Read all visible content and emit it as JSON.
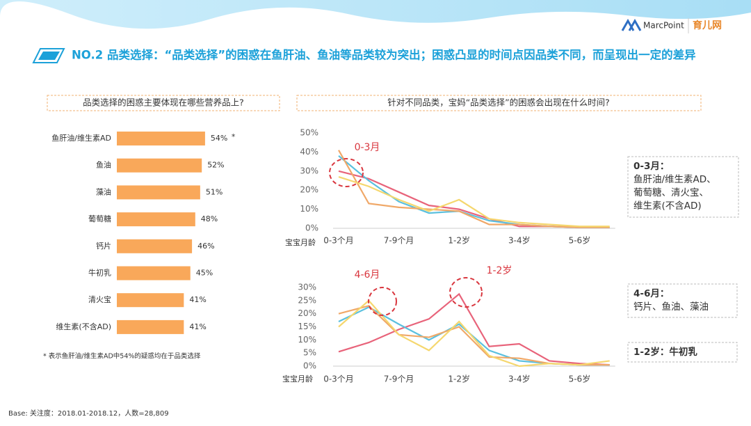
{
  "header": {
    "title": "NO.2 品类选择：“品类选择”的困惑在鱼肝油、鱼油等品类较为突出；困惑凸显的时间点因品类不同，而呈现出一定的差异",
    "logos": [
      "MarcPoint",
      "育儿网"
    ]
  },
  "footer": "Base: 关注度：2018.01-2018.12，人数=28,809",
  "chart_data": [
    {
      "type": "bar",
      "title": "品类选择的困惑主要体现在哪些营养品上?",
      "categories": [
        "鱼肝油/维生素AD",
        "鱼油",
        "藻油",
        "葡萄糖",
        "钙片",
        "牛初乳",
        "清火宝",
        "维生素(不含AD)"
      ],
      "values": [
        54,
        52,
        51,
        48,
        46,
        45,
        41,
        41
      ],
      "value_labels": [
        "54%",
        "52%",
        "51%",
        "48%",
        "46%",
        "45%",
        "41%",
        "41%"
      ],
      "color": "#f9a85a",
      "annotation": "*",
      "note": "* 表示鱼肝油/维生素AD中54%的疑惑均在于品类选择"
    },
    {
      "type": "line",
      "title": "针对不同品类，宝妈“品类选择”的困惑会出现在什么时间?",
      "x_label": "宝宝月龄",
      "categories": [
        "0-3个月",
        null,
        "7-9个月",
        null,
        "1-2岁",
        null,
        "3-4岁",
        null,
        "5-6岁",
        null
      ],
      "ylim": [
        0,
        50
      ],
      "yticks": [
        {
          "value": 0,
          "label": "0%"
        },
        {
          "value": 10,
          "label": "10%"
        },
        {
          "value": 20,
          "label": "20%"
        },
        {
          "value": 30,
          "label": "30%"
        },
        {
          "value": 40,
          "label": "40%"
        },
        {
          "value": 50,
          "label": "50%"
        }
      ],
      "series": [
        {
          "color": "#e8637a",
          "values": [
            30,
            26,
            19,
            12,
            10,
            5,
            1,
            1,
            0.5,
            0.5
          ]
        },
        {
          "color": "#5bc0de",
          "values": [
            38,
            25,
            14,
            8,
            9,
            4,
            2,
            1,
            0.5,
            0.5
          ]
        },
        {
          "color": "#f0a868",
          "values": [
            41,
            13,
            11,
            10,
            9,
            2,
            2,
            1,
            0.5,
            0.5
          ]
        },
        {
          "color": "#f5d76e",
          "values": [
            27,
            22,
            15,
            9,
            15,
            5,
            3,
            2,
            1,
            1
          ]
        }
      ],
      "annotations": [
        "0-3月"
      ],
      "callouts": [
        {
          "title": "0-3月：",
          "lines": [
            "鱼肝油/维生素AD、",
            "葡萄糖、清火宝、",
            "维生素(不含AD)"
          ]
        }
      ]
    },
    {
      "type": "line",
      "x_label": "宝宝月龄",
      "categories": [
        "0-3个月",
        null,
        "7-9个月",
        null,
        "1-2岁",
        null,
        "3-4岁",
        null,
        "5-6岁",
        null
      ],
      "ylim": [
        0,
        30
      ],
      "yticks": [
        {
          "value": 0,
          "label": "0%"
        },
        {
          "value": 5,
          "label": "5%"
        },
        {
          "value": 10,
          "label": "10%"
        },
        {
          "value": 15,
          "label": "15%"
        },
        {
          "value": 20,
          "label": "20%"
        },
        {
          "value": 25,
          "label": "25%"
        },
        {
          "value": 30,
          "label": "30%"
        }
      ],
      "series": [
        {
          "color": "#e8637a",
          "values": [
            5.5,
            9,
            14,
            18,
            27.5,
            7.5,
            8.5,
            2,
            1,
            0.5
          ]
        },
        {
          "color": "#5bc0de",
          "values": [
            17,
            22.5,
            16,
            10,
            16,
            6,
            2,
            1,
            0.5,
            0.5
          ]
        },
        {
          "color": "#f0a868",
          "values": [
            20,
            23,
            12,
            11,
            15,
            3.5,
            3,
            1,
            0.5,
            0.5
          ]
        },
        {
          "color": "#f5d76e",
          "values": [
            15,
            25,
            12,
            6,
            17,
            4,
            0,
            1,
            0.5,
            2
          ]
        }
      ],
      "annotations": [
        "4-6月",
        "1-2岁"
      ],
      "callouts": [
        {
          "title": "4-6月：",
          "lines": [
            "钙片、鱼油、藻油"
          ]
        },
        {
          "title": "1-2岁：牛初乳",
          "lines": []
        }
      ]
    }
  ]
}
